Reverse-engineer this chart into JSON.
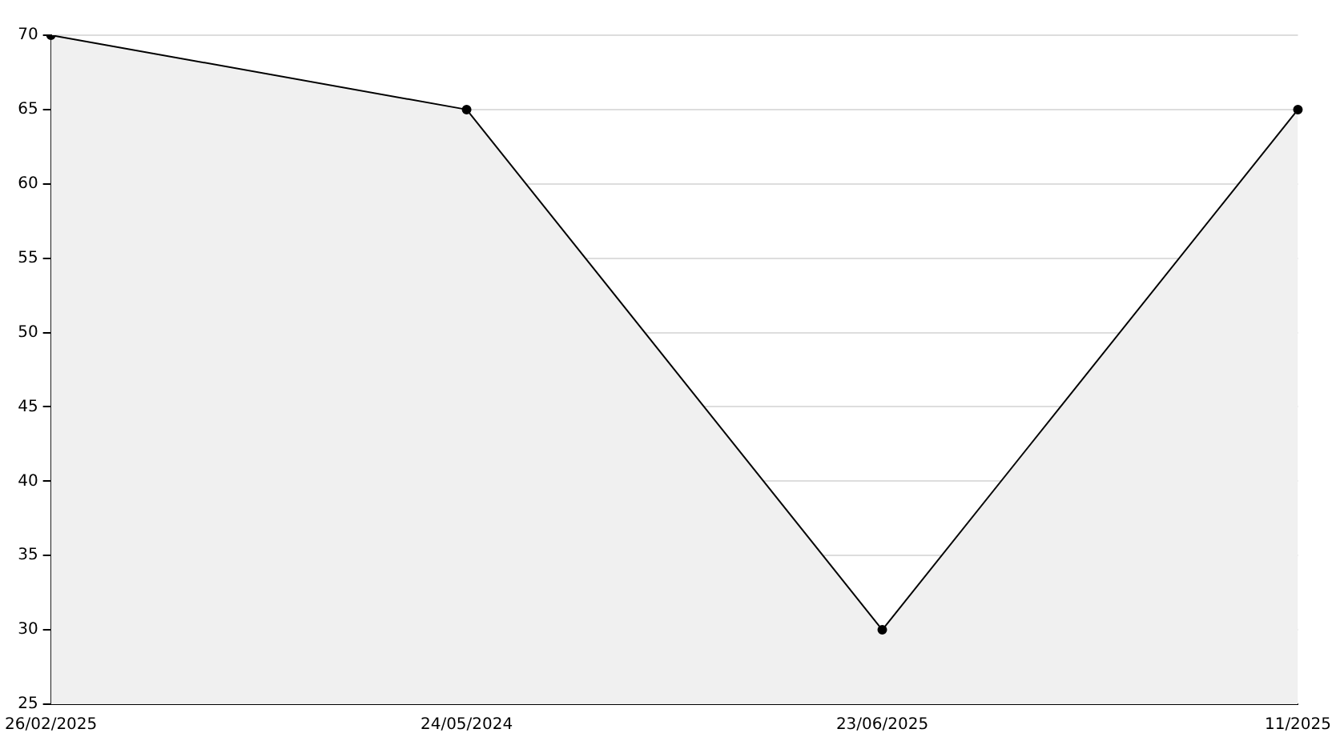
{
  "chart_data": {
    "type": "area",
    "categories": [
      "26/02/2025",
      "24/05/2024",
      "23/06/2025",
      "11/2025"
    ],
    "series": [
      {
        "color": "#000000",
        "values": [
          70,
          65,
          30,
          65
        ]
      }
    ],
    "ylim": [
      25,
      70
    ],
    "yticks": [
      25,
      30,
      35,
      40,
      45,
      50,
      55,
      60,
      65,
      70
    ],
    "grid": "y",
    "legend": false,
    "marker": "circle",
    "line_style": "solid"
  }
}
